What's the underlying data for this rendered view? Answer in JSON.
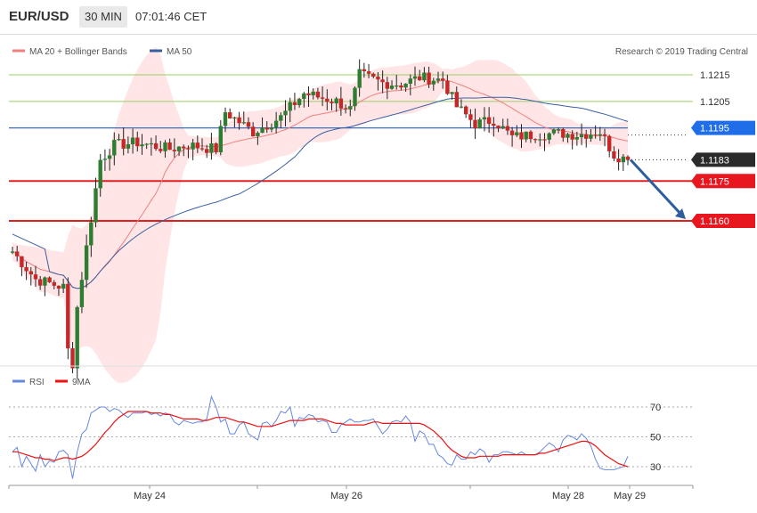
{
  "header": {
    "symbol": "EUR/USD",
    "interval": "30 MIN",
    "time": "07:01:46 CET"
  },
  "legend": {
    "ma_bollinger": "MA 20 + Bollinger Bands",
    "ma50": "MA 50",
    "copyright": "Research © 2019 Trading Central",
    "rsi": "RSI",
    "rsi_ma": "9MA"
  },
  "colors": {
    "candle_up": "#2e7d32",
    "candle_down": "#c62828",
    "bollinger_fill": "#ffe0e0",
    "ma20": "#f08080",
    "ma50": "#3a5fa0",
    "blue_level": "#3d6fc4",
    "red_level": "#e02020",
    "green_level": "#9ccc65",
    "rsi": "#6688dd",
    "rsi_ma": "#ee1111",
    "arrow": "#2f5e9e",
    "label_blue_bg": "#1f6ee8",
    "label_red_bg": "#e8161f",
    "label_dark_bg": "#2b2b2b"
  },
  "chart_data": [
    {
      "type": "candlestick",
      "title": "",
      "x_ticks": [
        "May 24",
        "May 26",
        "May 28",
        "May 29"
      ],
      "price_levels": [
        {
          "value": 1.1215,
          "label": "1.1215",
          "kind": "green"
        },
        {
          "value": 1.1205,
          "label": "1.1205",
          "kind": "green"
        },
        {
          "value": 1.1195,
          "label": "1.1195",
          "kind": "blue"
        },
        {
          "value": 1.1183,
          "label": "1.1183",
          "kind": "current"
        },
        {
          "value": 1.1175,
          "label": "1.1175",
          "kind": "red"
        },
        {
          "value": 1.116,
          "label": "1.1160",
          "kind": "red"
        }
      ],
      "series": [
        {
          "name": "MA 20 + Bollinger Bands",
          "style": "band"
        },
        {
          "name": "MA 50",
          "style": "line"
        }
      ],
      "arrow": {
        "from": 1.1183,
        "to": 1.116
      },
      "ylim": [
        1.1105,
        1.1235
      ]
    },
    {
      "type": "line",
      "title": "",
      "y_ticks": [
        70,
        50,
        30
      ],
      "ylim": [
        17,
        85
      ],
      "series": [
        {
          "name": "RSI",
          "values": [
            40,
            43,
            30,
            37,
            32,
            27,
            38,
            30,
            34,
            33,
            40,
            41,
            38,
            22,
            40,
            52,
            55,
            66,
            68,
            70,
            70,
            67,
            69,
            68,
            65,
            63,
            66,
            66,
            66,
            67,
            65,
            66,
            64,
            66,
            65,
            60,
            58,
            61,
            60,
            59,
            60,
            60,
            62,
            77,
            70,
            60,
            62,
            52,
            52,
            58,
            60,
            52,
            50,
            48,
            59,
            60,
            57,
            61,
            67,
            66,
            70,
            57,
            63,
            62,
            65,
            64,
            60,
            61,
            60,
            53,
            53,
            58,
            60,
            62,
            60,
            60,
            61,
            61,
            62,
            57,
            52,
            55,
            60,
            61,
            60,
            64,
            60,
            47,
            54,
            52,
            45,
            45,
            38,
            36,
            32,
            31,
            38,
            35,
            35,
            40,
            38,
            42,
            40,
            33,
            38,
            38,
            40,
            40,
            39,
            38,
            40,
            38,
            38,
            38,
            40,
            43,
            46,
            44,
            40,
            48,
            51,
            50,
            48,
            52,
            49,
            44,
            35,
            29,
            28,
            28,
            28,
            29,
            30,
            37
          ]
        },
        {
          "name": "9MA",
          "values": [
            40,
            40,
            39,
            38,
            37,
            36,
            36,
            35,
            35,
            34,
            35,
            36,
            36,
            35,
            36,
            37,
            39,
            42,
            45,
            49,
            53,
            56,
            60,
            63,
            65,
            67,
            67,
            67,
            67,
            67,
            66,
            66,
            66,
            65,
            65,
            64,
            63,
            62,
            62,
            62,
            62,
            61,
            61,
            62,
            63,
            63,
            63,
            62,
            61,
            60,
            60,
            59,
            58,
            57,
            57,
            57,
            57,
            58,
            59,
            60,
            61,
            61,
            61,
            61,
            62,
            62,
            62,
            62,
            61,
            60,
            59,
            59,
            58,
            58,
            58,
            58,
            58,
            59,
            60,
            60,
            59,
            59,
            59,
            59,
            59,
            59,
            59,
            59,
            59,
            58,
            56,
            54,
            51,
            48,
            44,
            41,
            39,
            37,
            36,
            36,
            36,
            37,
            37,
            37,
            37,
            37,
            38,
            38,
            38,
            38,
            38,
            38,
            38,
            38,
            39,
            39,
            40,
            41,
            42,
            43,
            44,
            45,
            46,
            47,
            47,
            46,
            44,
            41,
            38,
            36,
            34,
            32,
            31,
            30
          ]
        }
      ]
    }
  ]
}
